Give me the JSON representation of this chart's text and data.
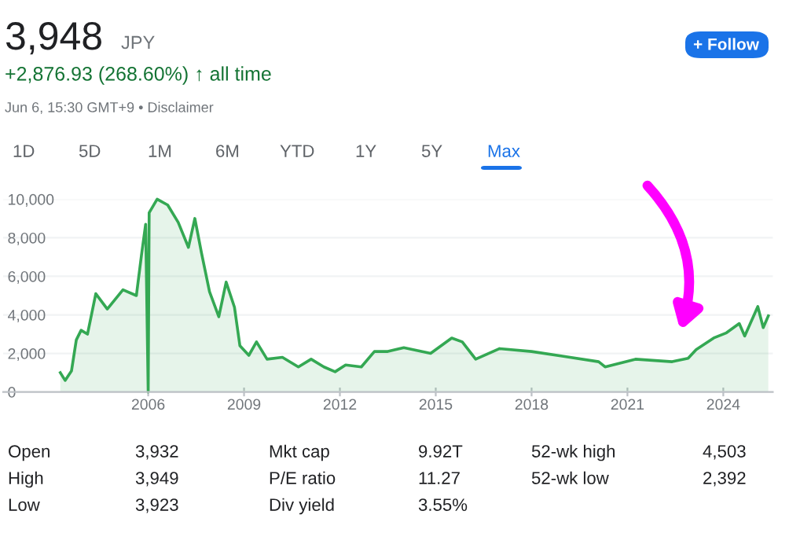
{
  "chart_data": {
    "type": "area",
    "title": "3,948",
    "subtitle": "+2,876.93 (268.60%) ↑ all time",
    "annotations": [
      "JPY",
      "Jun 6, 15:30 GMT+9 • Disclaimer",
      "1D",
      "5D",
      "1M",
      "6M",
      "YTD",
      "1Y",
      "5Y",
      "Max",
      "+ Follow",
      "Open",
      "3,932",
      "Mkt cap",
      "9.92T",
      "52-wk high",
      "4,503",
      "High",
      "3,949",
      "P/E ratio",
      "11.27",
      "52-wk low",
      "2,392",
      "Low",
      "3,923",
      "Div yield",
      "3.55%"
    ],
    "x": [
      2003.25,
      2003.4,
      2003.6,
      2003.75,
      2003.9,
      2004.1,
      2004.36,
      2004.72,
      2005.21,
      2005.63,
      2005.79,
      2005.92,
      2006.0,
      2006.03,
      2006.28,
      2006.61,
      2006.94,
      2007.26,
      2007.46,
      2007.67,
      2007.92,
      2008.21,
      2008.44,
      2008.7,
      2008.87,
      2009.15,
      2009.39,
      2009.72,
      2010.2,
      2010.7,
      2011.1,
      2011.5,
      2011.85,
      2012.18,
      2012.67,
      2013.08,
      2013.5,
      2014.0,
      2014.84,
      2015.5,
      2015.83,
      2016.25,
      2017.0,
      2018.0,
      2019.0,
      2020.1,
      2020.3,
      2021.25,
      2022.4,
      2022.9,
      2023.15,
      2023.7,
      2024.1,
      2024.5,
      2024.67,
      2025.08,
      2025.25,
      2025.41
    ],
    "series": [
      {
        "color": "#34a853",
        "values": [
          1000,
          600,
          1100,
          2700,
          3200,
          3000,
          5100,
          4300,
          5300,
          5000,
          7100,
          8700,
          0,
          9300,
          10000,
          9700,
          8800,
          7500,
          9000,
          7200,
          5200,
          3900,
          5700,
          4400,
          2400,
          1900,
          2600,
          1700,
          1800,
          1300,
          1700,
          1300,
          1050,
          1400,
          1300,
          2100,
          2100,
          2300,
          2000,
          2800,
          2600,
          1700,
          2250,
          2100,
          1850,
          1570,
          1300,
          1700,
          1570,
          1750,
          2200,
          2800,
          3070,
          3550,
          2900,
          4430,
          3340,
          3948
        ]
      }
    ],
    "xlim": [
      2001.46,
      2025.55
    ],
    "xticks": [
      2006,
      2009,
      2012,
      2015,
      2018,
      2021,
      2024
    ],
    "ylim": [
      0,
      10000
    ],
    "yticks": [
      {
        "value": 0,
        "label": "0"
      },
      {
        "value": 2000,
        "label": "2,000"
      },
      {
        "value": 4000,
        "label": "4,000"
      },
      {
        "value": 6000,
        "label": "6,000"
      },
      {
        "value": 8000,
        "label": "8,000"
      },
      {
        "value": 10000,
        "label": "10,000"
      }
    ],
    "grid": "y"
  }
}
